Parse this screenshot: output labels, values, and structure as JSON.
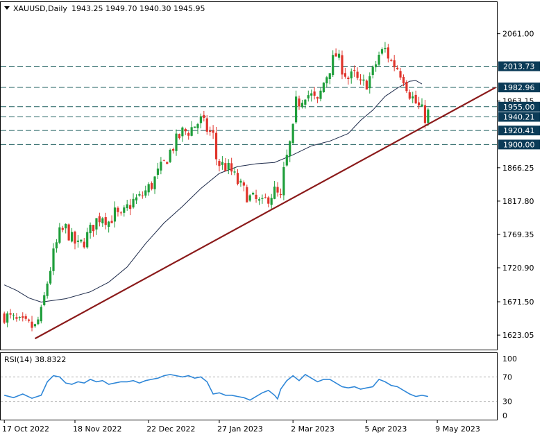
{
  "header": {
    "symbol": "XAUUSD,Daily",
    "ohlc": "1943.25 1949.70 1940.30 1945.95"
  },
  "colors": {
    "bull": "#1e9e3a",
    "bear": "#e0342b",
    "ma": "#1d2a4a",
    "trendline": "#8b1a1a",
    "level": "#1f5f5f",
    "label_bg": "#0b3b57",
    "rsi": "#2f87d8",
    "grid": "#b0b0b0"
  },
  "chart_data": {
    "type": "candlestick",
    "price_axis": {
      "ticks": [
        "2061.00",
        "1963.15",
        "1866.25",
        "1817.80",
        "1769.35",
        "1720.90",
        "1671.50",
        "1623.05"
      ],
      "range": [
        1603,
        2107
      ]
    },
    "time_axis": {
      "ticks": [
        "17 Oct 2022",
        "18 Nov 2022",
        "22 Dec 2022",
        "27 Jan 2023",
        "2 Mar 2023",
        "5 Apr 2023",
        "9 May 2023"
      ]
    },
    "levels": [
      {
        "price": 2013.73,
        "label": "2013.73"
      },
      {
        "price": 1982.96,
        "label": "1982.96"
      },
      {
        "price": 1955.0,
        "label": "1955.00"
      },
      {
        "price": 1940.21,
        "label": "1940.21"
      },
      {
        "price": 1920.41,
        "label": "1920.41"
      },
      {
        "price": 1900.0,
        "label": "1900.00"
      }
    ],
    "trendline": {
      "from": {
        "bar": 10,
        "price": 1618
      },
      "to": {
        "bar": 160,
        "price": 1983
      }
    },
    "ma_path": [
      [
        0,
        1696
      ],
      [
        4,
        1688
      ],
      [
        8,
        1677
      ],
      [
        12,
        1671
      ],
      [
        20,
        1676
      ],
      [
        28,
        1686
      ],
      [
        34,
        1700
      ],
      [
        40,
        1722
      ],
      [
        46,
        1756
      ],
      [
        52,
        1786
      ],
      [
        58,
        1810
      ],
      [
        64,
        1836
      ],
      [
        70,
        1858
      ],
      [
        76,
        1868
      ],
      [
        82,
        1872
      ],
      [
        88,
        1874
      ],
      [
        94,
        1885
      ],
      [
        100,
        1898
      ],
      [
        106,
        1905
      ],
      [
        112,
        1916
      ],
      [
        116,
        1935
      ],
      [
        120,
        1950
      ],
      [
        124,
        1970
      ],
      [
        128,
        1982
      ],
      [
        132,
        1992
      ],
      [
        134,
        1993
      ],
      [
        136,
        1988
      ]
    ],
    "candle_anchors": [
      [
        0,
        1652
      ],
      [
        5,
        1640
      ],
      [
        10,
        1634
      ],
      [
        12,
        1655
      ],
      [
        14,
        1700
      ],
      [
        16,
        1740
      ],
      [
        18,
        1770
      ],
      [
        20,
        1778
      ],
      [
        22,
        1762
      ],
      [
        24,
        1752
      ],
      [
        26,
        1760
      ],
      [
        28,
        1775
      ],
      [
        30,
        1790
      ],
      [
        32,
        1798
      ],
      [
        34,
        1788
      ],
      [
        36,
        1800
      ],
      [
        38,
        1792
      ],
      [
        40,
        1808
      ],
      [
        42,
        1818
      ],
      [
        44,
        1822
      ],
      [
        46,
        1832
      ],
      [
        48,
        1842
      ],
      [
        50,
        1858
      ],
      [
        52,
        1872
      ],
      [
        54,
        1890
      ],
      [
        56,
        1905
      ],
      [
        58,
        1918
      ],
      [
        60,
        1920
      ],
      [
        62,
        1928
      ],
      [
        64,
        1935
      ],
      [
        66,
        1922
      ],
      [
        68,
        1912
      ],
      [
        69,
        1880
      ],
      [
        70,
        1872
      ],
      [
        72,
        1868
      ],
      [
        74,
        1860
      ],
      [
        76,
        1845
      ],
      [
        78,
        1832
      ],
      [
        80,
        1822
      ],
      [
        82,
        1818
      ],
      [
        84,
        1812
      ],
      [
        86,
        1824
      ],
      [
        88,
        1832
      ],
      [
        90,
        1820
      ],
      [
        91,
        1860
      ],
      [
        92,
        1880
      ],
      [
        94,
        1920
      ],
      [
        95,
        1960
      ],
      [
        96,
        1962
      ],
      [
        98,
        1975
      ],
      [
        100,
        1970
      ],
      [
        102,
        1960
      ],
      [
        104,
        1990
      ],
      [
        106,
        2012
      ],
      [
        107,
        2022
      ],
      [
        108,
        2030
      ],
      [
        110,
        2012
      ],
      [
        112,
        1996
      ],
      [
        114,
        2000
      ],
      [
        116,
        1985
      ],
      [
        118,
        1990
      ],
      [
        120,
        2005
      ],
      [
        122,
        2030
      ],
      [
        124,
        2038
      ],
      [
        126,
        2020
      ],
      [
        128,
        2012
      ],
      [
        130,
        1998
      ],
      [
        132,
        1975
      ],
      [
        134,
        1960
      ],
      [
        136,
        1948
      ],
      [
        137,
        1940
      ],
      [
        138,
        1946
      ]
    ],
    "rsi": {
      "label": "RSI(14) 38.8322",
      "ticks": [
        "100",
        "70",
        "30",
        "0"
      ],
      "levels": [
        70,
        30
      ],
      "points": [
        [
          0,
          40
        ],
        [
          3,
          36
        ],
        [
          6,
          42
        ],
        [
          9,
          35
        ],
        [
          12,
          40
        ],
        [
          14,
          62
        ],
        [
          16,
          72
        ],
        [
          18,
          70
        ],
        [
          20,
          60
        ],
        [
          22,
          58
        ],
        [
          24,
          62
        ],
        [
          26,
          60
        ],
        [
          28,
          66
        ],
        [
          30,
          62
        ],
        [
          32,
          64
        ],
        [
          34,
          58
        ],
        [
          36,
          60
        ],
        [
          38,
          62
        ],
        [
          40,
          62
        ],
        [
          42,
          64
        ],
        [
          44,
          60
        ],
        [
          46,
          64
        ],
        [
          48,
          66
        ],
        [
          50,
          68
        ],
        [
          52,
          72
        ],
        [
          54,
          74
        ],
        [
          56,
          72
        ],
        [
          58,
          70
        ],
        [
          60,
          72
        ],
        [
          62,
          68
        ],
        [
          64,
          70
        ],
        [
          66,
          62
        ],
        [
          68,
          42
        ],
        [
          70,
          44
        ],
        [
          72,
          40
        ],
        [
          74,
          40
        ],
        [
          76,
          38
        ],
        [
          78,
          36
        ],
        [
          80,
          32
        ],
        [
          82,
          38
        ],
        [
          84,
          44
        ],
        [
          86,
          48
        ],
        [
          88,
          40
        ],
        [
          89,
          34
        ],
        [
          90,
          50
        ],
        [
          92,
          64
        ],
        [
          94,
          72
        ],
        [
          96,
          64
        ],
        [
          98,
          74
        ],
        [
          100,
          68
        ],
        [
          102,
          62
        ],
        [
          104,
          66
        ],
        [
          106,
          66
        ],
        [
          108,
          60
        ],
        [
          110,
          54
        ],
        [
          112,
          52
        ],
        [
          114,
          54
        ],
        [
          116,
          50
        ],
        [
          118,
          52
        ],
        [
          120,
          54
        ],
        [
          122,
          66
        ],
        [
          124,
          62
        ],
        [
          126,
          56
        ],
        [
          128,
          54
        ],
        [
          130,
          48
        ],
        [
          132,
          42
        ],
        [
          134,
          38
        ],
        [
          136,
          40
        ],
        [
          138,
          38
        ]
      ]
    }
  }
}
